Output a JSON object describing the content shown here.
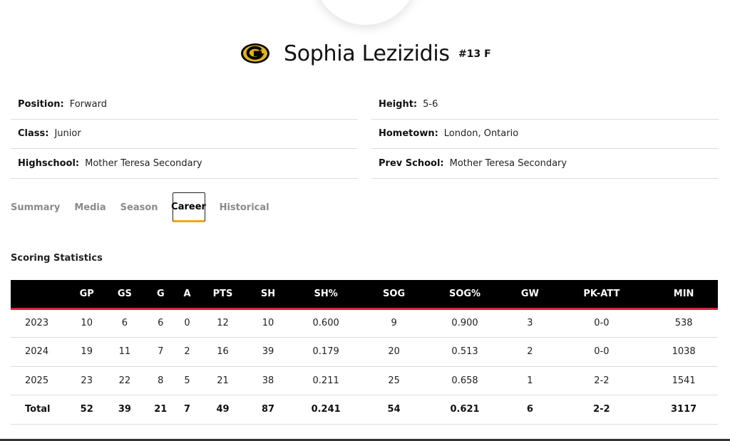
{
  "player": {
    "name": "Sophia Lezizidis",
    "meta": "#13 F"
  },
  "bio": {
    "left": [
      {
        "label": "Position:",
        "value": "Forward"
      },
      {
        "label": "Class:",
        "value": "Junior"
      },
      {
        "label": "Highschool:",
        "value": "Mother Teresa Secondary"
      }
    ],
    "right": [
      {
        "label": "Height:",
        "value": "5-6"
      },
      {
        "label": "Hometown:",
        "value": "London, Ontario"
      },
      {
        "label": "Prev School:",
        "value": "Mother Teresa Secondary"
      }
    ]
  },
  "tabs": [
    "Summary",
    "Media",
    "Season",
    "Career",
    "Historical"
  ],
  "active_tab": "Career",
  "section_title": "Scoring Statistics",
  "table": {
    "headers": [
      "",
      "GP",
      "GS",
      "G",
      "A",
      "PTS",
      "SH",
      "SH%",
      "SOG",
      "SOG%",
      "GW",
      "PK-ATT",
      "MIN"
    ],
    "rows": [
      [
        "2023",
        "10",
        "6",
        "6",
        "0",
        "12",
        "10",
        "0.600",
        "9",
        "0.900",
        "3",
        "0-0",
        "538"
      ],
      [
        "2024",
        "19",
        "11",
        "7",
        "2",
        "16",
        "39",
        "0.179",
        "20",
        "0.513",
        "2",
        "0-0",
        "1038"
      ],
      [
        "2025",
        "23",
        "22",
        "8",
        "5",
        "21",
        "38",
        "0.211",
        "25",
        "0.658",
        "1",
        "2-2",
        "1541"
      ]
    ],
    "total": [
      "Total",
      "52",
      "39",
      "21",
      "7",
      "49",
      "87",
      "0.241",
      "54",
      "0.621",
      "6",
      "2-2",
      "3117"
    ]
  },
  "colors": {
    "header_bg": "#000000",
    "header_underline": "#d6213a",
    "active_tab_underline": "#f0a800",
    "logo_gold": "#e0b21f"
  },
  "icons": {
    "logo": "team-g-logo"
  }
}
